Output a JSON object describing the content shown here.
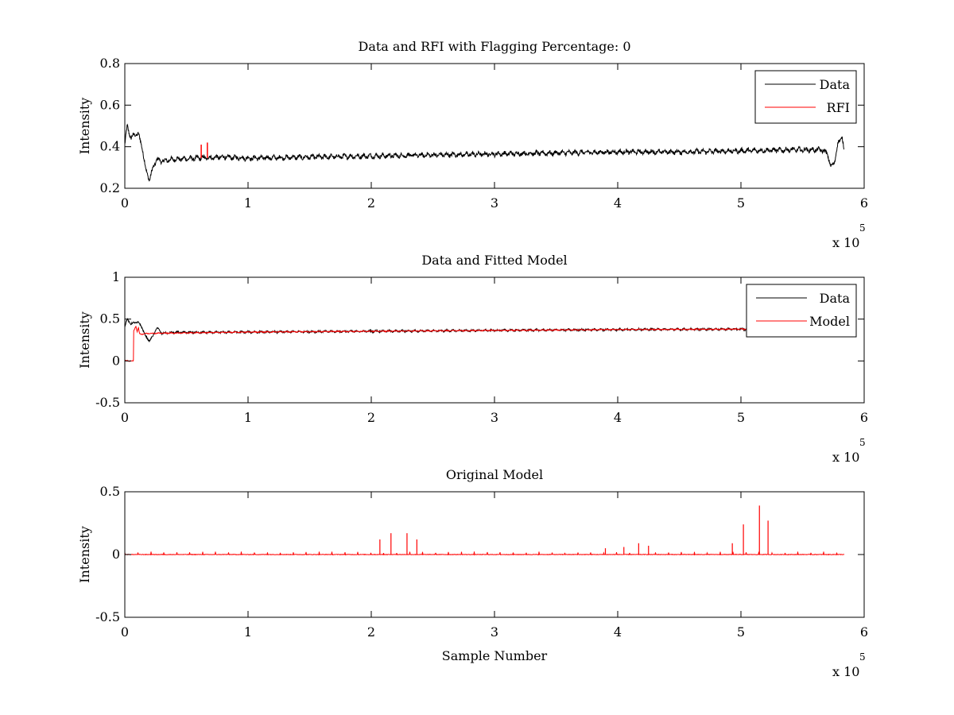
{
  "colors": {
    "data": "#000000",
    "rfi": "#ff0000",
    "model": "#ff0000",
    "axis": "#000000"
  },
  "chart_data": [
    {
      "type": "line",
      "title": "Data and RFI with Flagging Percentage: 0",
      "xlabel": "",
      "ylabel": "Intensity",
      "xlim": [
        0,
        600000
      ],
      "ylim": [
        0.2,
        0.8
      ],
      "x_ticks": [
        0,
        1,
        2,
        3,
        4,
        5,
        6
      ],
      "y_ticks": [
        0.2,
        0.4,
        0.6,
        0.8
      ],
      "y_tick_labels": [
        "0.2",
        "0.4",
        "0.6",
        "0.8"
      ],
      "x_multiplier_label": "x 10",
      "x_multiplier_exponent": "5",
      "legend_placement": "top-right",
      "series": [
        {
          "name": "Data",
          "role": "data",
          "x": [
            0,
            2000,
            5000,
            8000,
            11000,
            14000,
            17000,
            20000,
            23000,
            26000,
            30000,
            40000,
            60000,
            80000,
            100000,
            150000,
            200000,
            250000,
            300000,
            350000,
            400000,
            450000,
            500000,
            540000,
            565000,
            570000,
            573000,
            576000,
            579000,
            582000,
            584000
          ],
          "y": [
            0.41,
            0.5,
            0.44,
            0.46,
            0.46,
            0.4,
            0.29,
            0.24,
            0.3,
            0.34,
            0.33,
            0.34,
            0.345,
            0.35,
            0.345,
            0.35,
            0.355,
            0.36,
            0.365,
            0.37,
            0.375,
            0.375,
            0.38,
            0.385,
            0.385,
            0.37,
            0.3,
            0.33,
            0.42,
            0.45,
            0.37
          ]
        },
        {
          "name": "RFI",
          "role": "rfi",
          "spikes": [
            {
              "x": 62000,
              "y": 0.41
            },
            {
              "x": 67000,
              "y": 0.42
            }
          ]
        }
      ]
    },
    {
      "type": "line",
      "title": "Data and Fitted Model",
      "xlabel": "",
      "ylabel": "Intensity",
      "xlim": [
        0,
        600000
      ],
      "ylim": [
        -0.5,
        1
      ],
      "x_ticks": [
        0,
        1,
        2,
        3,
        4,
        5,
        6
      ],
      "y_ticks": [
        -0.5,
        0,
        0.5,
        1
      ],
      "y_tick_labels": [
        "-0.5",
        "0",
        "0.5",
        "1"
      ],
      "x_multiplier_label": "x 10",
      "x_multiplier_exponent": "5",
      "legend_placement": "top-right",
      "series": [
        {
          "name": "Data",
          "role": "data",
          "x": [
            0,
            2000,
            5000,
            8000,
            11000,
            14000,
            17000,
            20000,
            23000,
            26000,
            30000,
            40000,
            100000,
            200000,
            300000,
            400000,
            500000,
            505000
          ],
          "y": [
            0.41,
            0.5,
            0.44,
            0.46,
            0.46,
            0.4,
            0.29,
            0.24,
            0.3,
            0.4,
            0.33,
            0.34,
            0.345,
            0.355,
            0.365,
            0.375,
            0.38,
            0.38
          ]
        },
        {
          "name": "Model",
          "role": "model",
          "x": [
            0,
            7000,
            7100,
            9000,
            10000,
            11000,
            12000,
            20000,
            100000,
            200000,
            300000,
            400000,
            500000,
            505000
          ],
          "y": [
            0,
            0,
            0.35,
            0.42,
            0.35,
            0.4,
            0.32,
            0.33,
            0.345,
            0.355,
            0.365,
            0.375,
            0.38,
            0.38
          ]
        }
      ]
    },
    {
      "type": "line",
      "title": "Original Model",
      "xlabel": "Sample Number",
      "ylabel": "Intensity",
      "xlim": [
        0,
        600000
      ],
      "ylim": [
        -0.5,
        0.5
      ],
      "x_ticks": [
        0,
        1,
        2,
        3,
        4,
        5,
        6
      ],
      "y_ticks": [
        -0.5,
        0,
        0.5
      ],
      "y_tick_labels": [
        "-0.5",
        "0",
        "0.5"
      ],
      "x_multiplier_label": "x 10",
      "x_multiplier_exponent": "5",
      "series": [
        {
          "role": "model",
          "baseline_range": [
            0,
            584000
          ],
          "spikes": [
            {
              "x": 207000,
              "y": 0.12
            },
            {
              "x": 216000,
              "y": 0.17
            },
            {
              "x": 229000,
              "y": 0.17
            },
            {
              "x": 237000,
              "y": 0.12
            },
            {
              "x": 417000,
              "y": 0.09
            },
            {
              "x": 425000,
              "y": 0.07
            },
            {
              "x": 493000,
              "y": 0.09
            },
            {
              "x": 502000,
              "y": 0.24
            },
            {
              "x": 515000,
              "y": 0.39
            },
            {
              "x": 522000,
              "y": 0.27
            },
            {
              "x": 405000,
              "y": 0.06
            },
            {
              "x": 390000,
              "y": 0.05
            }
          ]
        }
      ]
    }
  ]
}
